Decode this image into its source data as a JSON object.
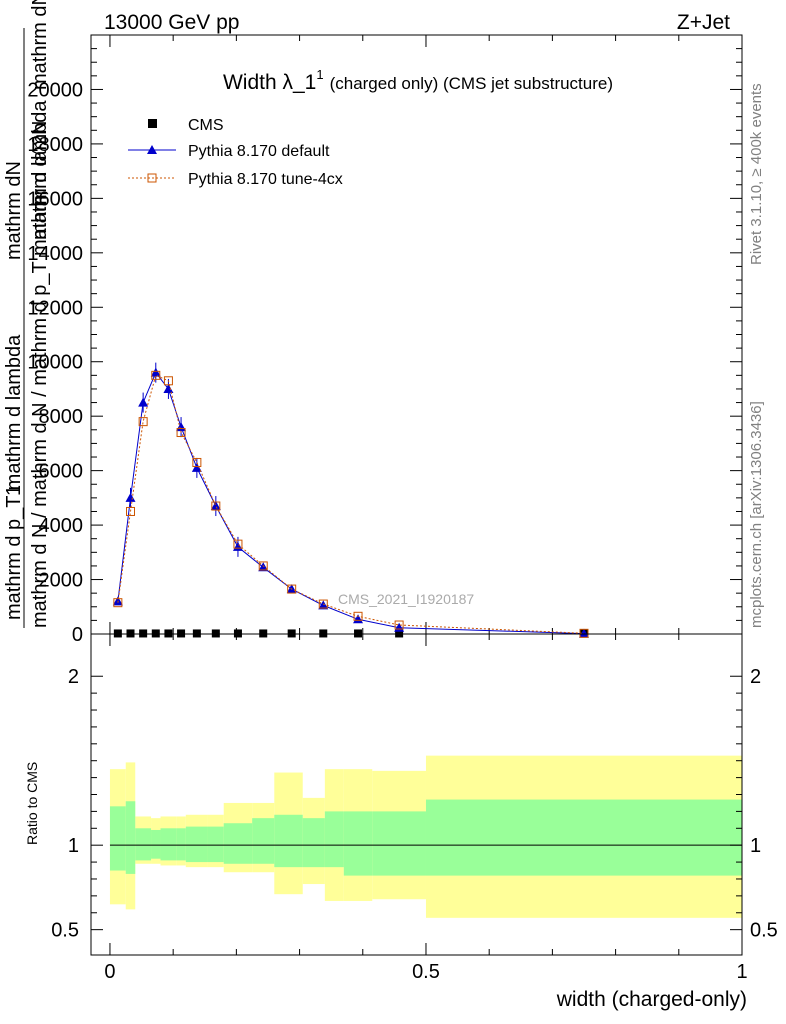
{
  "header": {
    "left": "13000 GeV pp",
    "right": "Z+Jet"
  },
  "side_labels": {
    "rivet": "Rivet 3.1.10, ≥ 400k events",
    "mcplots": "mcplots.cern.ch [arXiv:1306.3436]"
  },
  "watermark": "CMS_2021_I1920187",
  "ylabel_main": {
    "frac_top": "1",
    "frac_mid_num": "mathrm dN",
    "frac_mid_den": "mathrm d p_T mathrm d lambda",
    "frac_inner_num": "mathrm d^2N",
    "frac_inner_den": "mathrm dN / mathrm d p_T",
    "frac_side": "mathrm d N / mathrm d N / mathrm d p_T mathrm d lambda"
  },
  "chart_data": [
    {
      "type": "line",
      "title": "Width λ_1",
      "title_sup": "1",
      "title_rest": "(charged only) (CMS jet substructure)",
      "xlabel": "width (charged-only)",
      "xlim": [
        -0.03,
        1.0
      ],
      "ylim": [
        0,
        22000
      ],
      "yticks": [
        0,
        2000,
        4000,
        6000,
        8000,
        10000,
        12000,
        14000,
        16000,
        18000,
        20000
      ],
      "ytick_labels": [
        "0",
        "2000",
        "4000",
        "6000",
        "8000",
        "10000",
        "12000",
        "14000",
        "16000",
        "18000",
        "20000"
      ],
      "legend": [
        "CMS",
        "Pythia 8.170 default",
        "Pythia 8.170 tune-4cx"
      ],
      "legend_position": "top-left",
      "series": [
        {
          "name": "CMS",
          "color": "#000000",
          "marker": "square",
          "x": [
            0.0125,
            0.0325,
            0.0525,
            0.0725,
            0.0925,
            0.1125,
            0.1375,
            0.1675,
            0.2025,
            0.2425,
            0.2875,
            0.3375,
            0.3925,
            0.4575,
            0.75
          ],
          "y": [
            20,
            20,
            20,
            20,
            20,
            20,
            20,
            20,
            20,
            20,
            20,
            20,
            20,
            20,
            20
          ]
        },
        {
          "name": "Pythia 8.170 default",
          "color": "#0000cc",
          "marker": "triangle",
          "x": [
            0.0125,
            0.0325,
            0.0525,
            0.0725,
            0.0925,
            0.1125,
            0.1375,
            0.1675,
            0.2025,
            0.2425,
            0.2875,
            0.3375,
            0.3925,
            0.4575,
            0.75
          ],
          "y": [
            1200,
            5000,
            8500,
            9600,
            9000,
            7600,
            6100,
            4700,
            3200,
            2450,
            1650,
            1050,
            540,
            230,
            15
          ]
        },
        {
          "name": "Pythia 8.170 tune-4cx",
          "color": "#cc5500",
          "marker": "open-square",
          "x": [
            0.0125,
            0.0325,
            0.0525,
            0.0725,
            0.0925,
            0.1125,
            0.1375,
            0.1675,
            0.2025,
            0.2425,
            0.2875,
            0.3375,
            0.3925,
            0.4575,
            0.75
          ],
          "y": [
            1150,
            4500,
            7800,
            9500,
            9300,
            7400,
            6300,
            4700,
            3300,
            2500,
            1650,
            1100,
            650,
            330,
            25
          ]
        }
      ]
    },
    {
      "type": "area",
      "ylabel": "Ratio to CMS",
      "xlim": [
        -0.03,
        1.0
      ],
      "ylim": [
        0.35,
        2.25
      ],
      "yticks": [
        0.5,
        1,
        2
      ],
      "ytick_labels": [
        "0.5",
        "1",
        "2"
      ],
      "xticks": [
        0,
        0.5,
        1
      ],
      "xtick_labels": [
        "0",
        "0.5",
        "1"
      ],
      "bin_edges": [
        0,
        0.025,
        0.04,
        0.065,
        0.08,
        0.105,
        0.12,
        0.155,
        0.18,
        0.225,
        0.26,
        0.305,
        0.34,
        0.37,
        0.415,
        0.5,
        1.0
      ],
      "band_1sigma": {
        "color": "#99ff99",
        "lower": [
          0.85,
          0.83,
          0.91,
          0.92,
          0.91,
          0.91,
          0.9,
          0.9,
          0.89,
          0.89,
          0.87,
          0.87,
          0.87,
          0.82,
          0.82,
          0.82
        ],
        "upper": [
          1.23,
          1.26,
          1.1,
          1.09,
          1.1,
          1.1,
          1.11,
          1.11,
          1.13,
          1.16,
          1.18,
          1.16,
          1.2,
          1.2,
          1.2,
          1.27
        ]
      },
      "band_2sigma": {
        "color": "#ffff99",
        "lower": [
          0.65,
          0.62,
          0.89,
          0.89,
          0.88,
          0.88,
          0.87,
          0.87,
          0.84,
          0.84,
          0.71,
          0.77,
          0.67,
          0.67,
          0.68,
          0.57
        ],
        "upper": [
          1.45,
          1.49,
          1.17,
          1.16,
          1.17,
          1.17,
          1.18,
          1.18,
          1.25,
          1.25,
          1.43,
          1.28,
          1.45,
          1.45,
          1.44,
          1.53
        ]
      },
      "reference_line": 1
    }
  ]
}
